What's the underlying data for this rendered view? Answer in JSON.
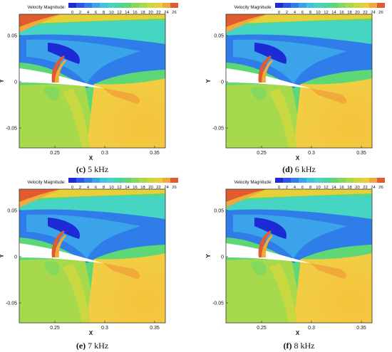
{
  "colorbar": {
    "label": "Velocity Magnitude:",
    "ticks": [
      "0",
      "2",
      "4",
      "6",
      "8",
      "10",
      "12",
      "14",
      "16",
      "18",
      "20",
      "22",
      "24",
      "26"
    ],
    "colors": [
      "#1d2bd6",
      "#2f55e6",
      "#2f7de8",
      "#3aa3ea",
      "#41c3e0",
      "#45d5c2",
      "#4ad69a",
      "#5ed876",
      "#84d95d",
      "#a7d94c",
      "#c8d840",
      "#e6cf3a",
      "#f0a93a",
      "#e05b2d"
    ]
  },
  "axes": {
    "xlabel": "X",
    "ylabel": "Y",
    "xticks": [
      "0.25",
      "0.3",
      "0.35"
    ],
    "yticks": [
      "0.05",
      "0",
      "-0.05"
    ]
  },
  "panels": [
    {
      "letter": "(c)",
      "rest": " 5 kHz"
    },
    {
      "letter": "(d)",
      "rest": " 6 kHz"
    },
    {
      "letter": "(e)",
      "rest": " 7 kHz"
    },
    {
      "letter": "(f)",
      "rest": " 8 kHz"
    }
  ]
}
